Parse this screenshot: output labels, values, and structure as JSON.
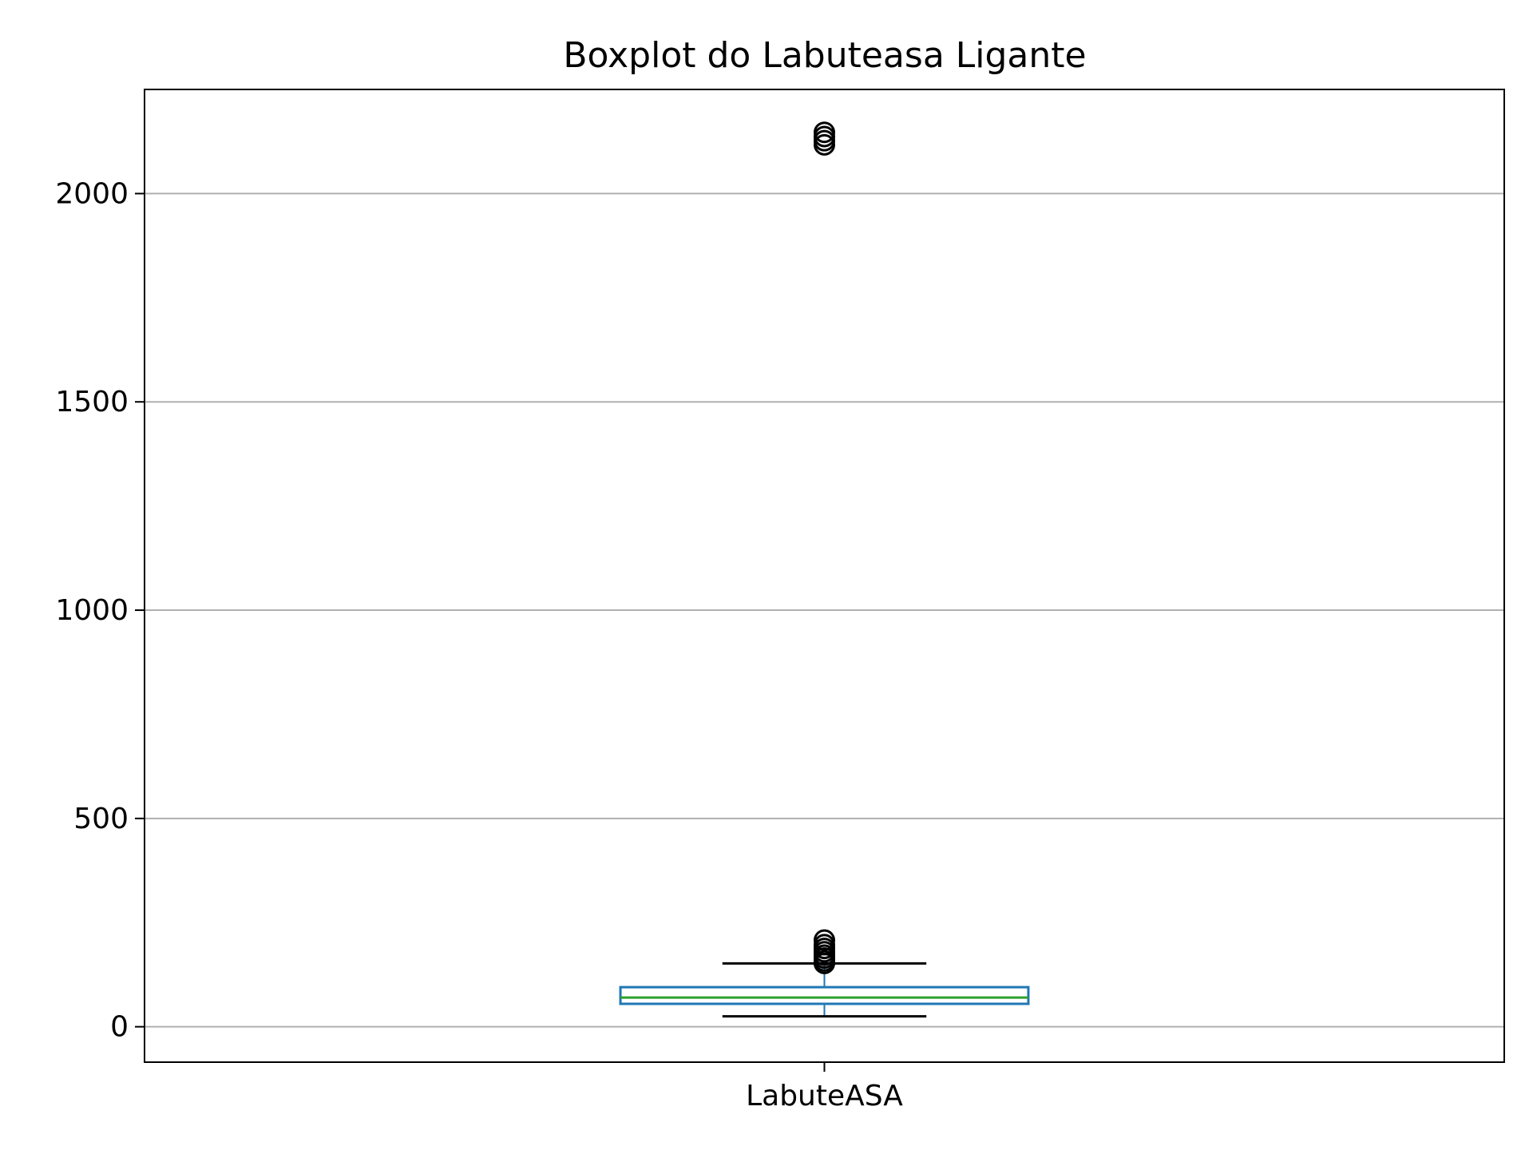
{
  "chart_data": {
    "type": "boxplot",
    "title": "Boxplot do Labuteasa Ligante",
    "xlabel": "",
    "ylabel": "",
    "categories": [
      "LabuteASA"
    ],
    "ylim": [
      -85,
      2250
    ],
    "yticks": [
      0,
      500,
      1000,
      1500,
      2000
    ],
    "grid": "y",
    "legend": "none",
    "boxes": [
      {
        "label": "LabuteASA",
        "whislo": 25,
        "q1": 55,
        "med": 70,
        "q3": 95,
        "whishi": 152,
        "fliers": [
          152,
          158,
          165,
          172,
          180,
          188,
          197,
          208,
          2117,
          2127,
          2137,
          2147
        ]
      }
    ],
    "colors": {
      "box": "#1f77b4",
      "median": "#2ca02c",
      "whisker": "#1f77b4",
      "cap": "#000000",
      "flier": "#000000",
      "grid": "#b0b0b0",
      "axes": "#000000"
    }
  }
}
